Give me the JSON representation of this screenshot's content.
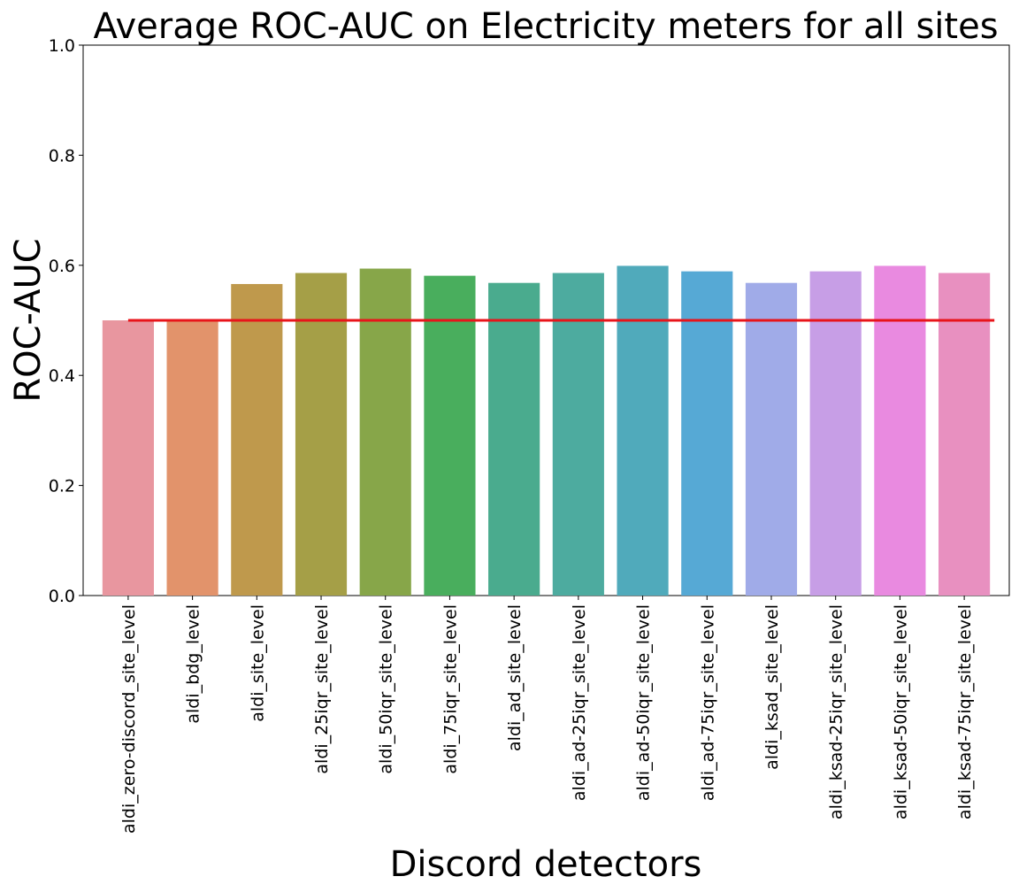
{
  "chart_data": {
    "type": "bar",
    "title": "Average ROC-AUC on Electricity meters for all sites",
    "xlabel": "Discord detectors",
    "ylabel": "ROC-AUC",
    "ylim": [
      0,
      1.0
    ],
    "yticks": [
      "0.0",
      "0.2",
      "0.4",
      "0.6",
      "0.8",
      "1.0"
    ],
    "grid": false,
    "categories": [
      "aldi_zero-discord_site_level",
      "aldi_bdg_level",
      "aldi_site_level",
      "aldi_25iqr_site_level",
      "aldi_50iqr_site_level",
      "aldi_75iqr_site_level",
      "aldi_ad_site_level",
      "aldi_ad-25iqr_site_level",
      "aldi_ad-50iqr_site_level",
      "aldi_ad-75iqr_site_level",
      "aldi_ksad_site_level",
      "aldi_ksad-25iqr_site_level",
      "aldi_ksad-50iqr_site_level",
      "aldi_ksad-75iqr_site_level"
    ],
    "values": [
      0.5,
      0.5,
      0.566,
      0.586,
      0.594,
      0.581,
      0.568,
      0.586,
      0.599,
      0.589,
      0.568,
      0.589,
      0.599,
      0.586
    ],
    "colors": [
      "#e8969f",
      "#e2936b",
      "#bf994c",
      "#a59f47",
      "#87a649",
      "#49ae5d",
      "#4aab8e",
      "#4dab9f",
      "#50aabb",
      "#56a9d5",
      "#a0abe8",
      "#c79ee6",
      "#e98ae0",
      "#e890c0"
    ],
    "reference_line": {
      "value": 0.5,
      "color": "#e8141a"
    }
  }
}
